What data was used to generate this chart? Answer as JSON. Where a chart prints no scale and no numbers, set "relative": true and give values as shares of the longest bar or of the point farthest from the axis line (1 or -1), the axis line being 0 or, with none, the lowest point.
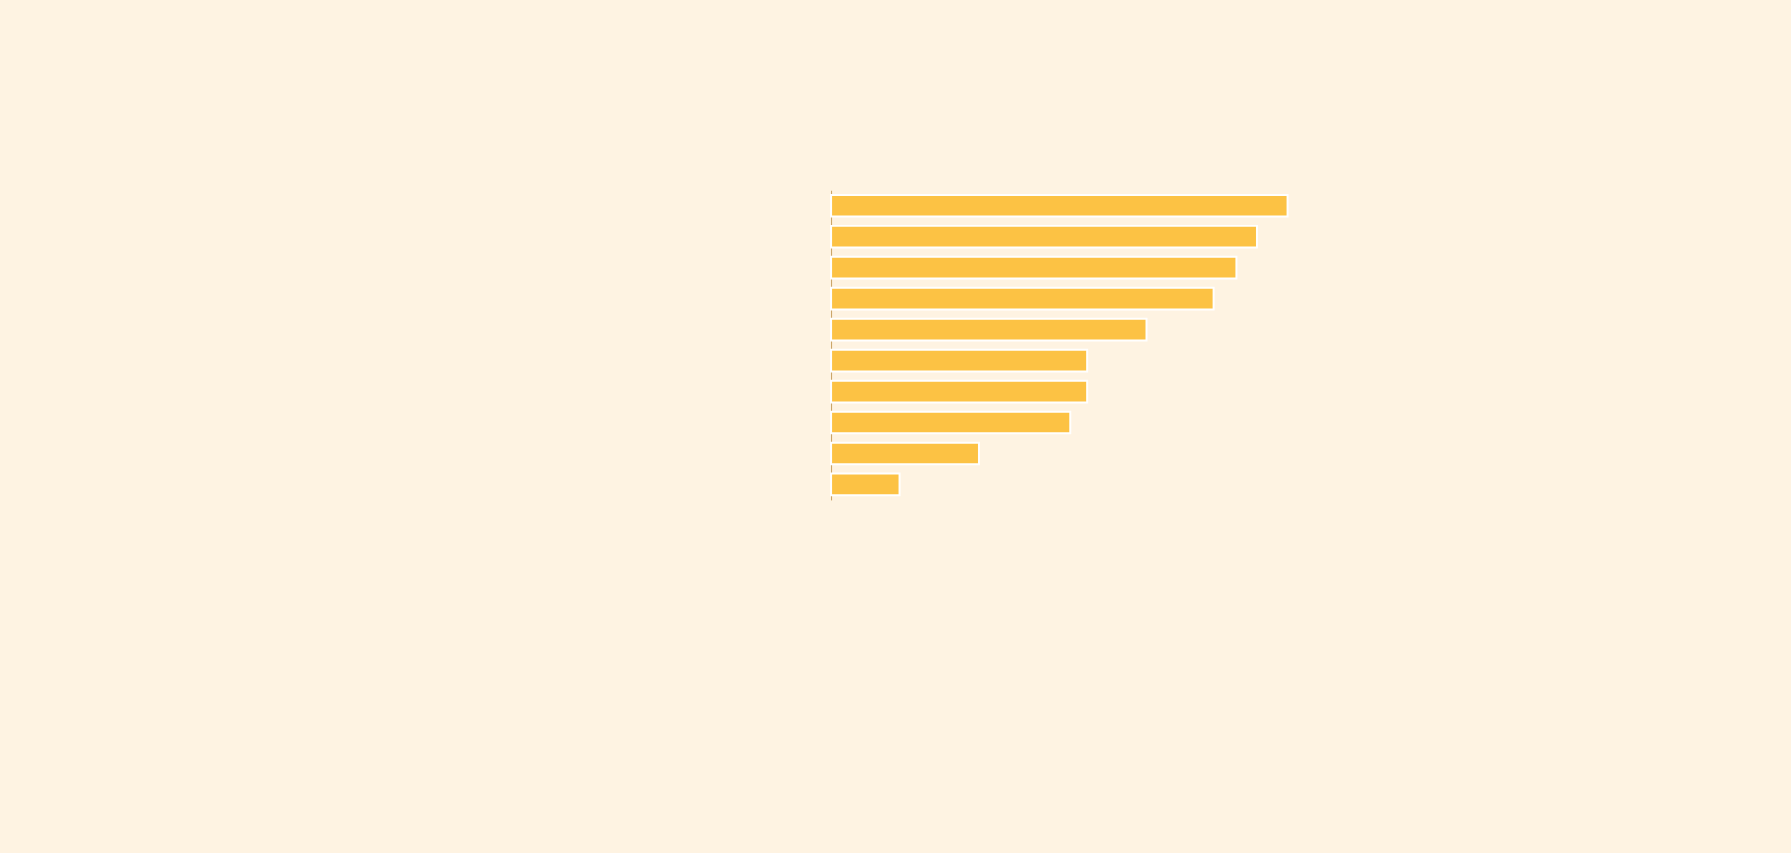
{
  "chart_data": {
    "type": "bar",
    "orientation": "horizontal",
    "relative": true,
    "categories": [
      null,
      null,
      null,
      null,
      null,
      null,
      null,
      null,
      null,
      null
    ],
    "values": [
      1,
      0.933,
      0.888,
      0.838,
      0.691,
      0.561,
      0.561,
      0.524,
      0.324,
      0.15
    ],
    "color": "#fcc244"
  }
}
